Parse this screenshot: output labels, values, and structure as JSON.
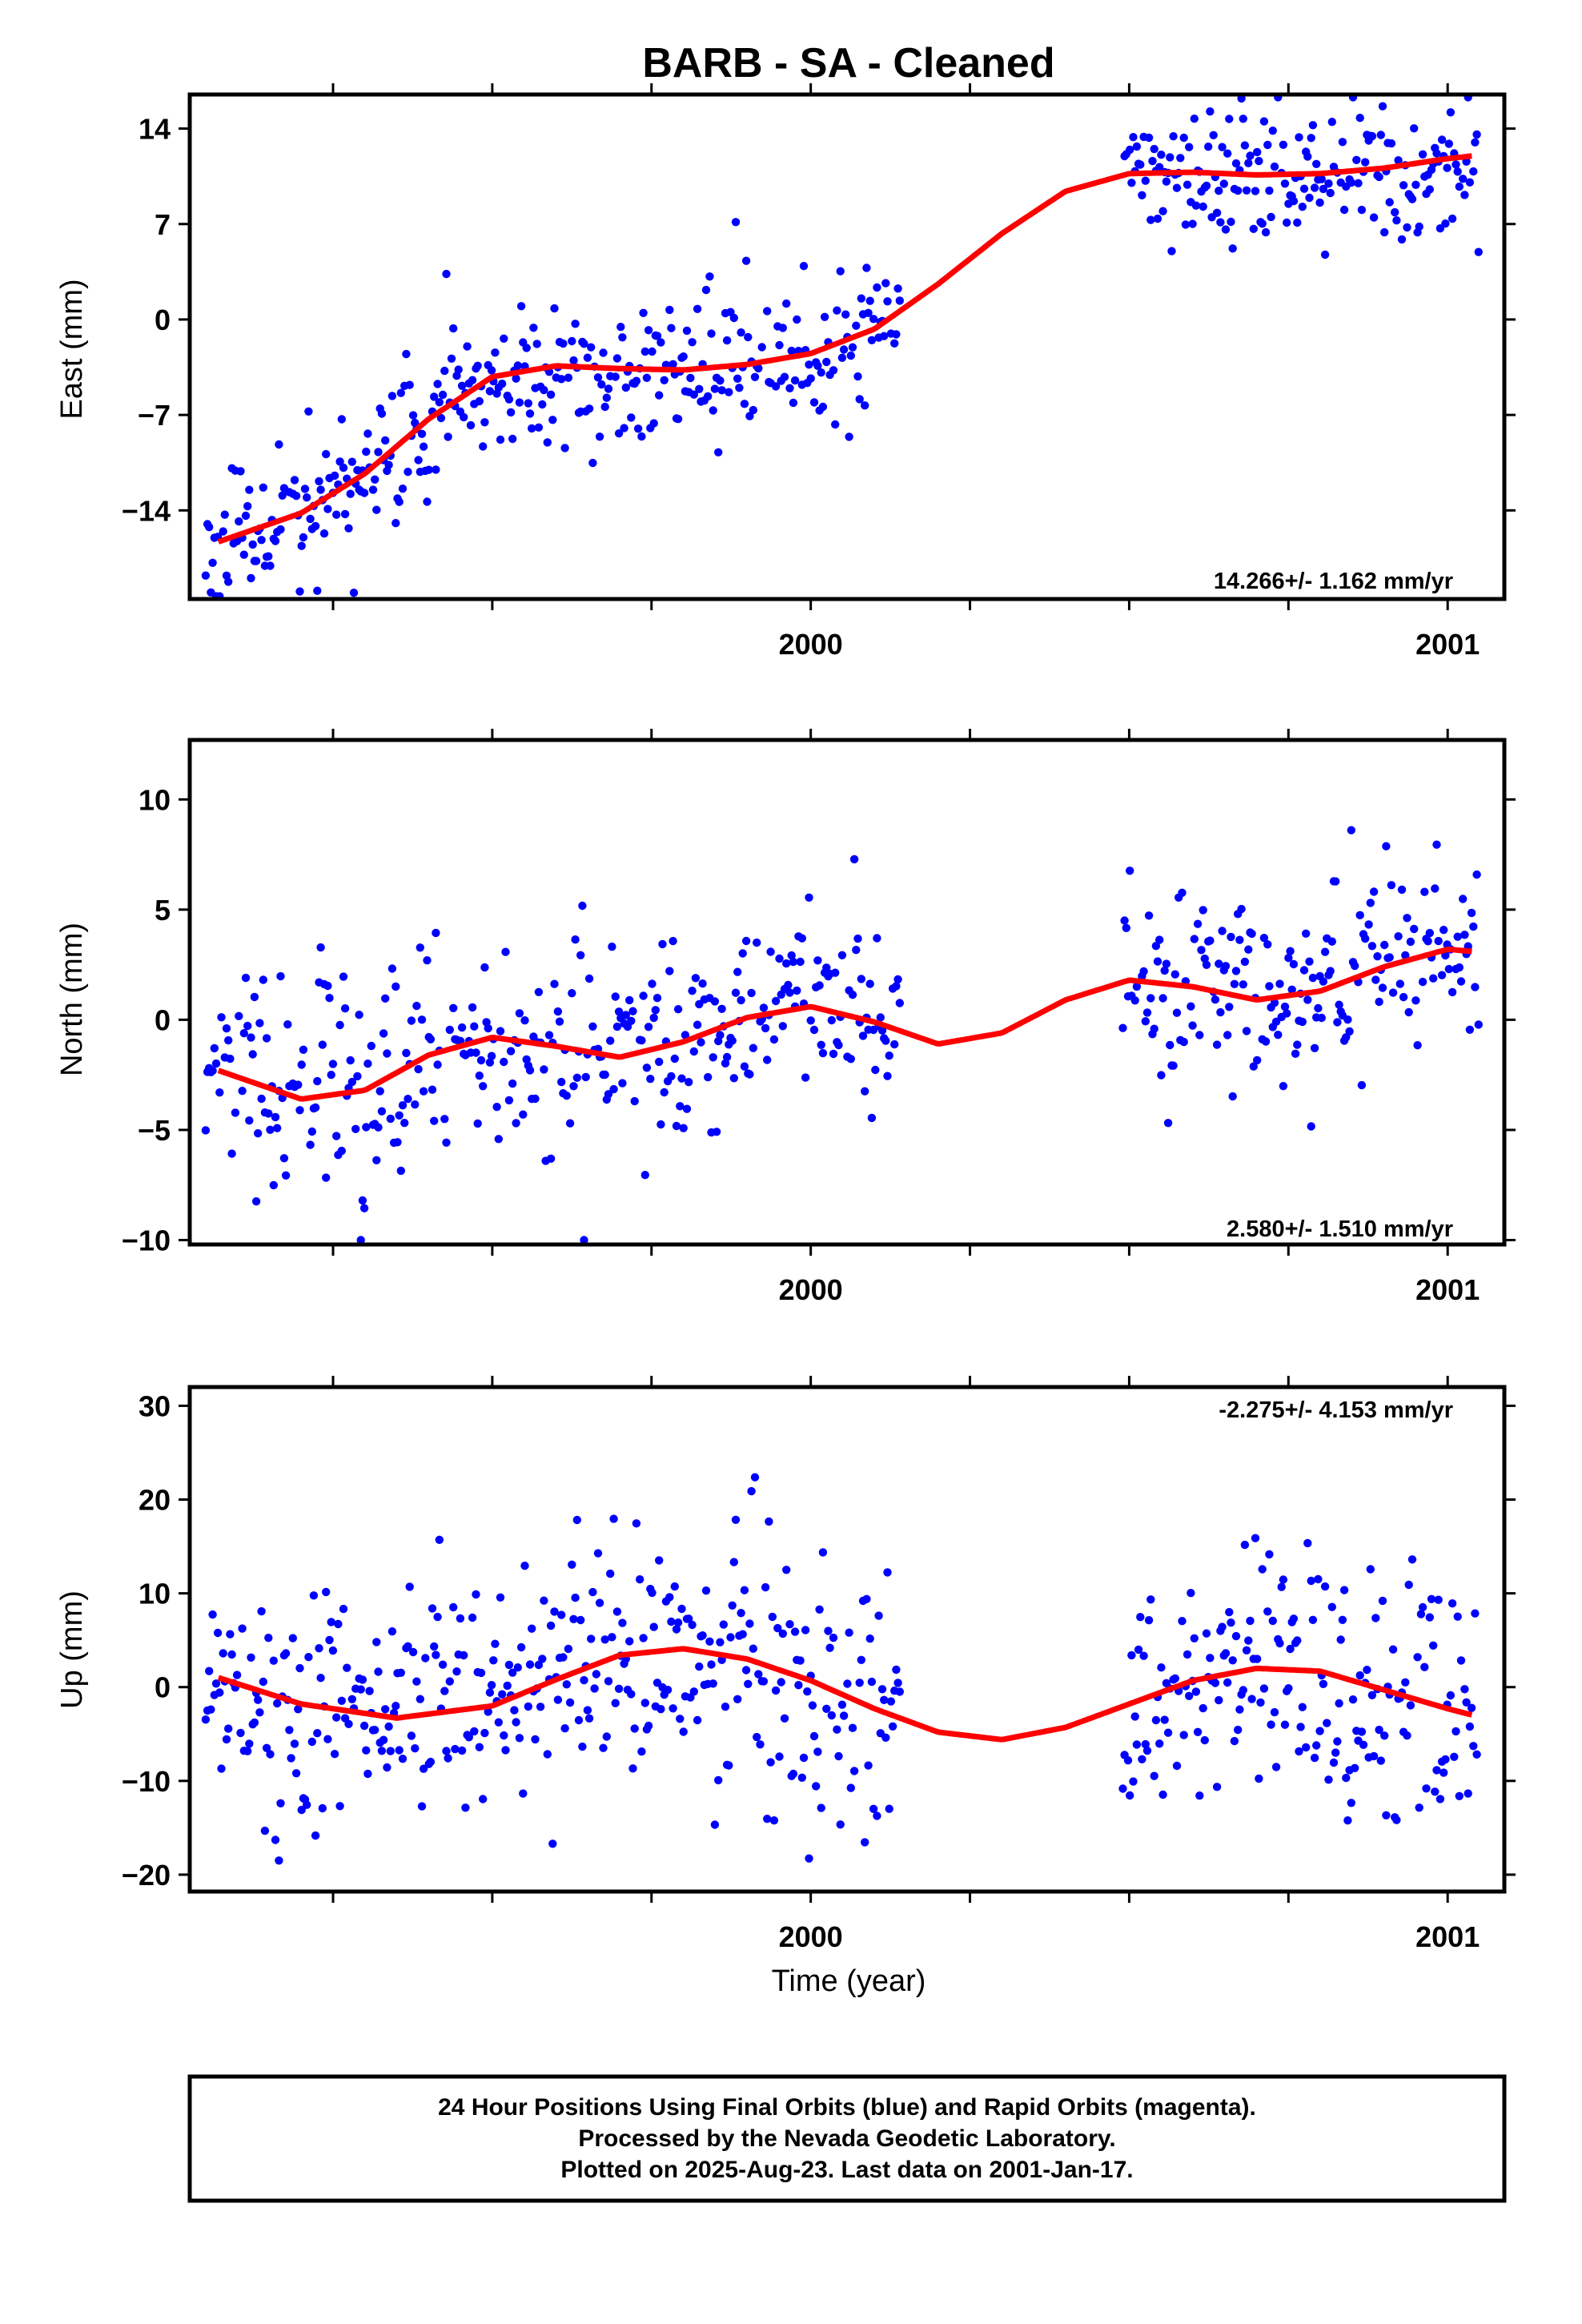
{
  "title": "BARB  - SA - Cleaned",
  "xlabel": "Time (year)",
  "footer": {
    "line1": "24 Hour Positions Using Final Orbits (blue) and Rapid Orbits (magenta).",
    "line2": "Processed by the Nevada Geodetic Laboratory.",
    "line3": "Plotted on 2025-Aug-23. Last data on 2001-Jan-17."
  },
  "colors": {
    "final_orbits": "#0000ff",
    "rapid_orbits": "#ff00ff",
    "fit": "#ff0000",
    "frame": "#000000"
  },
  "chart_data": [
    {
      "type": "scatter",
      "component": "east",
      "ylabel": "East (mm)",
      "rate_text": "14.266+/- 1.162 mm/yr",
      "xlim": [
        1999.025,
        2001.089
      ],
      "ylim": [
        -20.5,
        16.5
      ],
      "yticks": [
        14,
        7,
        0,
        -7,
        -14
      ],
      "xticks_labeled": [
        2000,
        2001
      ],
      "xticks_minor": [
        1999.25,
        1999.5,
        1999.75,
        2000.25,
        2000.5,
        2000.75
      ],
      "grid": false,
      "trend": {
        "rate": 14.266,
        "ref_year": 1999.95,
        "ref_value": -3.0,
        "annual_sin": 2.1,
        "annual_cos": 0.0,
        "semi_sin": -0.8,
        "semi_cos": 0.0
      },
      "fit_x": [
        1999.07,
        1999.2,
        1999.3,
        1999.4,
        1999.5,
        1999.6,
        1999.7,
        1999.8,
        1999.9,
        2000.0,
        2000.1,
        2000.2,
        2000.3,
        2000.4,
        2000.5,
        2000.6,
        2000.7,
        2000.8,
        2000.9,
        2001.0,
        2001.04
      ],
      "fit_y": [
        -16.3,
        -14.2,
        -11.3,
        -7.3,
        -4.2,
        -3.4,
        -3.6,
        -3.7,
        -3.3,
        -2.5,
        -0.7,
        2.6,
        6.3,
        9.4,
        10.7,
        10.8,
        10.6,
        10.7,
        11.1,
        11.8,
        12.0
      ],
      "spans": [
        [
          1999.05,
          2000.14
        ],
        [
          2000.49,
          2001.05
        ]
      ],
      "noise": {
        "sd": 2.6,
        "spike_prob": 0.03,
        "spike_size": 5,
        "seed": 11
      }
    },
    {
      "type": "scatter",
      "component": "north",
      "ylabel": "North (mm)",
      "rate_text": "2.580+/- 1.510 mm/yr",
      "xlim": [
        1999.025,
        2001.089
      ],
      "ylim": [
        -10.2,
        12.7
      ],
      "yticks": [
        10,
        5,
        0,
        -5,
        -10
      ],
      "xticks_labeled": [
        2000,
        2001
      ],
      "xticks_minor": [
        1999.25,
        1999.5,
        1999.75,
        2000.25,
        2000.5,
        2000.75
      ],
      "grid": false,
      "trend": {
        "rate": 2.58,
        "ref_year": 2000.05,
        "ref_value": -0.3,
        "annual_sin": 0.4,
        "annual_cos": -0.2,
        "semi_sin": -1.2,
        "semi_cos": 0.3
      },
      "fit_x": [
        1999.07,
        1999.2,
        1999.3,
        1999.4,
        1999.5,
        1999.6,
        1999.7,
        1999.8,
        1999.9,
        2000.0,
        2000.1,
        2000.2,
        2000.3,
        2000.4,
        2000.5,
        2000.6,
        2000.7,
        2000.8,
        2000.9,
        2001.0,
        2001.04
      ],
      "fit_y": [
        -2.3,
        -3.6,
        -3.2,
        -1.6,
        -0.8,
        -1.2,
        -1.7,
        -1.0,
        0.1,
        0.6,
        -0.1,
        -1.1,
        -0.6,
        0.9,
        1.8,
        1.5,
        0.9,
        1.3,
        2.4,
        3.2,
        3.1
      ],
      "spans": [
        [
          1999.05,
          2000.14
        ],
        [
          2000.49,
          2001.05
        ]
      ],
      "noise": {
        "sd": 2.1,
        "spike_prob": 0.04,
        "spike_size": 4,
        "seed": 23
      }
    },
    {
      "type": "scatter",
      "component": "up",
      "ylabel": "Up (mm)",
      "rate_text": "-2.275+/- 4.153 mm/yr",
      "xlim": [
        1999.025,
        2001.089
      ],
      "ylim": [
        -21.8,
        32.0
      ],
      "yticks": [
        30,
        20,
        10,
        0,
        -10,
        -20
      ],
      "xticks_labeled": [
        2000,
        2001
      ],
      "xticks_minor": [
        1999.25,
        1999.5,
        1999.75,
        2000.25,
        2000.5,
        2000.75
      ],
      "grid": false,
      "trend": {
        "rate": -2.275,
        "ref_year": 2000.0,
        "ref_value": 0.5,
        "annual_sin": 3.8,
        "annual_cos": 2.5,
        "semi_sin": 0.8,
        "semi_cos": 0.3
      },
      "fit_x": [
        1999.07,
        1999.2,
        1999.35,
        1999.5,
        1999.6,
        1999.7,
        1999.8,
        1999.9,
        2000.0,
        2000.1,
        2000.2,
        2000.3,
        2000.4,
        2000.5,
        2000.6,
        2000.7,
        2000.8,
        2000.9,
        2001.0,
        2001.04
      ],
      "fit_y": [
        1.0,
        -1.8,
        -3.3,
        -2.0,
        0.8,
        3.4,
        4.1,
        3.0,
        0.7,
        -2.3,
        -4.8,
        -5.6,
        -4.3,
        -1.8,
        0.7,
        2.0,
        1.7,
        -0.3,
        -2.3,
        -3.0
      ],
      "spans": [
        [
          1999.05,
          2000.14
        ],
        [
          2000.49,
          2001.05
        ]
      ],
      "noise": {
        "sd": 6.5,
        "spike_prob": 0.05,
        "spike_size": 9,
        "seed": 37
      }
    }
  ]
}
